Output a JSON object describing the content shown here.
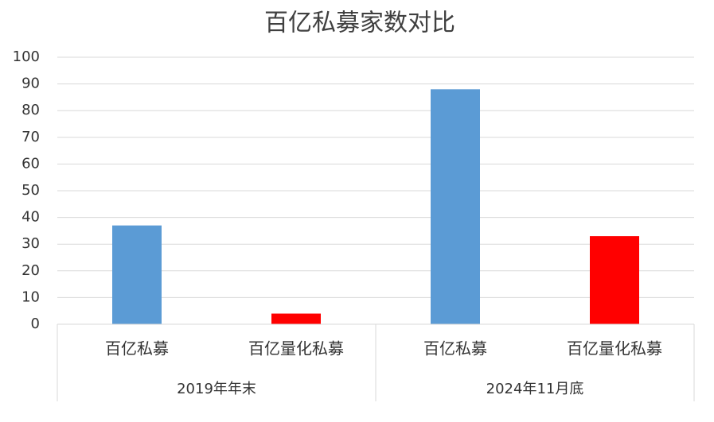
{
  "chart_data": {
    "type": "bar",
    "title": "百亿私募家数对比",
    "groups": [
      {
        "name": "2019年年末",
        "categories": [
          "百亿私募",
          "百亿量化私募"
        ],
        "values": [
          37,
          4
        ],
        "colors": [
          "#5b9bd5",
          "#ff0000"
        ]
      },
      {
        "name": "2024年11月底",
        "categories": [
          "百亿私募",
          "百亿量化私募"
        ],
        "values": [
          88,
          33
        ],
        "colors": [
          "#5b9bd5",
          "#ff0000"
        ]
      }
    ],
    "ylim": [
      0,
      100
    ],
    "yticks": [
      0,
      10,
      20,
      30,
      40,
      50,
      60,
      70,
      80,
      90,
      100
    ],
    "grid": true
  }
}
